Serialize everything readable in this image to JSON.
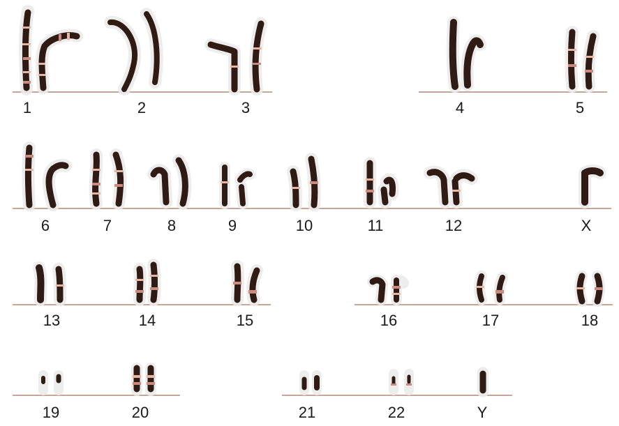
{
  "colors": {
    "chromatin": "#2f1a14",
    "chromatin_alt": "#4a2a20",
    "band_light": "#e7b7a6",
    "band_pink": "#c98a80",
    "halo": "#e6e6e6",
    "baseline": "#c8a49a"
  },
  "rows": [
    {
      "pairs": [
        {
          "id": "chr-1",
          "label": "1"
        },
        {
          "id": "chr-2",
          "label": "2"
        },
        {
          "id": "chr-3",
          "label": "3"
        },
        {
          "id": "chr-4",
          "label": "4"
        },
        {
          "id": "chr-5",
          "label": "5"
        }
      ]
    },
    {
      "pairs": [
        {
          "id": "chr-6",
          "label": "6"
        },
        {
          "id": "chr-7",
          "label": "7"
        },
        {
          "id": "chr-8",
          "label": "8"
        },
        {
          "id": "chr-9",
          "label": "9"
        },
        {
          "id": "chr-10",
          "label": "10"
        },
        {
          "id": "chr-11",
          "label": "11"
        },
        {
          "id": "chr-12",
          "label": "12"
        },
        {
          "id": "chr-x",
          "label": "X"
        }
      ]
    },
    {
      "pairs": [
        {
          "id": "chr-13",
          "label": "13"
        },
        {
          "id": "chr-14",
          "label": "14"
        },
        {
          "id": "chr-15",
          "label": "15"
        },
        {
          "id": "chr-16",
          "label": "16"
        },
        {
          "id": "chr-17",
          "label": "17"
        },
        {
          "id": "chr-18",
          "label": "18"
        }
      ]
    },
    {
      "pairs": [
        {
          "id": "chr-19",
          "label": "19"
        },
        {
          "id": "chr-20",
          "label": "20"
        },
        {
          "id": "chr-21",
          "label": "21"
        },
        {
          "id": "chr-22",
          "label": "22"
        },
        {
          "id": "chr-y",
          "label": "Y"
        }
      ]
    }
  ]
}
